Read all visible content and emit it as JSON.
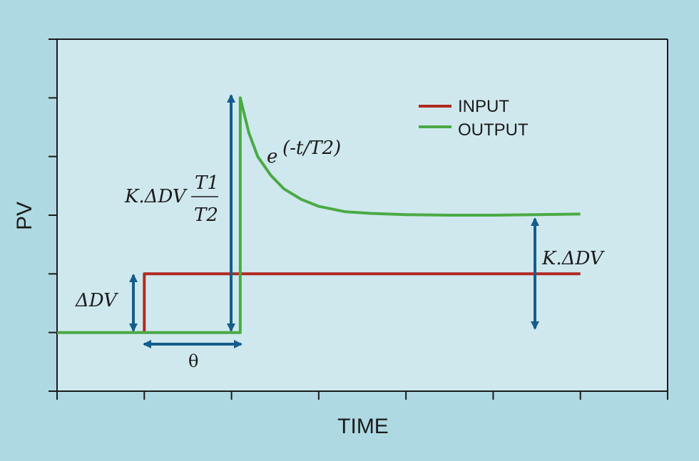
{
  "colors": {
    "background": "#afd9e2",
    "plot_bg": "#cfe8ee",
    "axis": "#1b1b1b",
    "input": "#b02a22",
    "output": "#4aaa44",
    "arrow": "#145d8e"
  },
  "chart_data": {
    "type": "line",
    "xlabel": "TIME",
    "ylabel": "PV",
    "xlim": [
      0,
      7
    ],
    "ylim": [
      0,
      6
    ],
    "x_ticks": [
      0,
      1,
      2,
      3,
      4,
      5,
      6,
      7
    ],
    "y_ticks": [
      0,
      1,
      2,
      3,
      4,
      5,
      6
    ],
    "legend": {
      "position": "top-right",
      "entries": [
        "INPUT",
        "OUTPUT"
      ]
    },
    "series": [
      {
        "name": "INPUT",
        "color": "#b02a22",
        "points": [
          [
            1.0,
            1.0
          ],
          [
            1.0,
            2.0
          ],
          [
            6.0,
            2.0
          ]
        ]
      },
      {
        "name": "OUTPUT",
        "color": "#4aaa44",
        "points": [
          [
            0.0,
            1.0
          ],
          [
            2.1,
            1.0
          ],
          [
            2.1,
            5.0
          ],
          [
            2.2,
            4.4
          ],
          [
            2.3,
            4.0
          ],
          [
            2.45,
            3.68
          ],
          [
            2.6,
            3.45
          ],
          [
            2.8,
            3.27
          ],
          [
            3.0,
            3.15
          ],
          [
            3.3,
            3.06
          ],
          [
            3.6,
            3.03
          ],
          [
            4.0,
            3.01
          ],
          [
            4.5,
            3.0
          ],
          [
            5.0,
            3.0
          ],
          [
            5.5,
            3.01
          ],
          [
            6.0,
            3.02
          ]
        ]
      }
    ],
    "annotations": {
      "delta_dv": "ΔDV",
      "gain_change": "K.ΔDV",
      "peak_gain_prefix": "K.ΔDV",
      "peak_numerator": "T1",
      "peak_denominator": "T2",
      "decay_base": "e",
      "decay_exponent": "(-t/T2)",
      "dead_time": "θ"
    }
  }
}
